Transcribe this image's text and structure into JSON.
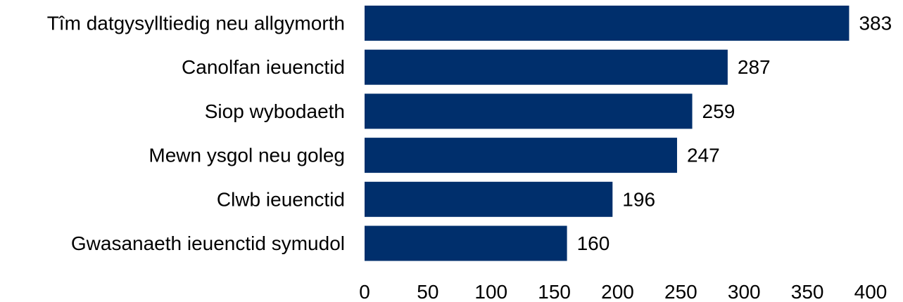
{
  "chart_data": {
    "type": "bar",
    "orientation": "horizontal",
    "categories": [
      "Tîm datgysylltiedig neu allgymorth",
      "Canolfan ieuenctid",
      "Siop wybodaeth",
      "Mewn ysgol neu goleg",
      "Clwb ieuenctid",
      "Gwasanaeth ieuenctid symudol"
    ],
    "values": [
      383,
      287,
      259,
      247,
      196,
      160
    ],
    "data_labels": [
      "383",
      "287",
      "259",
      "247",
      "196",
      "160"
    ],
    "xlim": [
      0,
      400
    ],
    "x_ticks": [
      0,
      50,
      100,
      150,
      200,
      250,
      300,
      350,
      400
    ],
    "x_tick_labels": [
      "0",
      "50",
      "100",
      "150",
      "200",
      "250",
      "300",
      "350",
      "400"
    ],
    "title": "",
    "xlabel": "",
    "ylabel": "",
    "grid": false,
    "legend": "none",
    "colors": {
      "bar": "#002f6c",
      "text": "#000000"
    }
  }
}
